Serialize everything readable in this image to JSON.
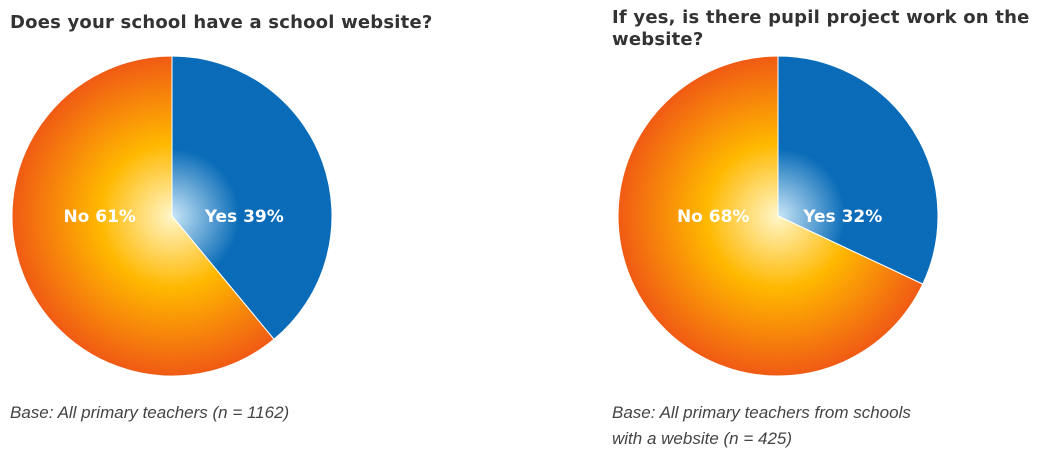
{
  "colors": {
    "yes_edge": "#0a6cb8",
    "yes_center": "#c9e6f7",
    "no_edge": "#f05a14",
    "no_mid": "#ffb800",
    "no_center": "#fff6c8",
    "title": "#333333",
    "note": "#444444"
  },
  "chart_data": [
    {
      "type": "pie",
      "title": "Does your school have a school website?",
      "slices": [
        {
          "label": "Yes",
          "value": 39,
          "display": "Yes 39%"
        },
        {
          "label": "No",
          "value": 61,
          "display": "No 61%"
        }
      ],
      "note": "Base: All primary teachers (n = 1162)"
    },
    {
      "type": "pie",
      "title": "If yes, is there pupil project work on the website?",
      "slices": [
        {
          "label": "Yes",
          "value": 32,
          "display": "Yes 32%"
        },
        {
          "label": "No",
          "value": 68,
          "display": "No 68%"
        }
      ],
      "note_lines": [
        "Base: All primary teachers from schools",
        "with a website (n = 425)"
      ]
    }
  ]
}
